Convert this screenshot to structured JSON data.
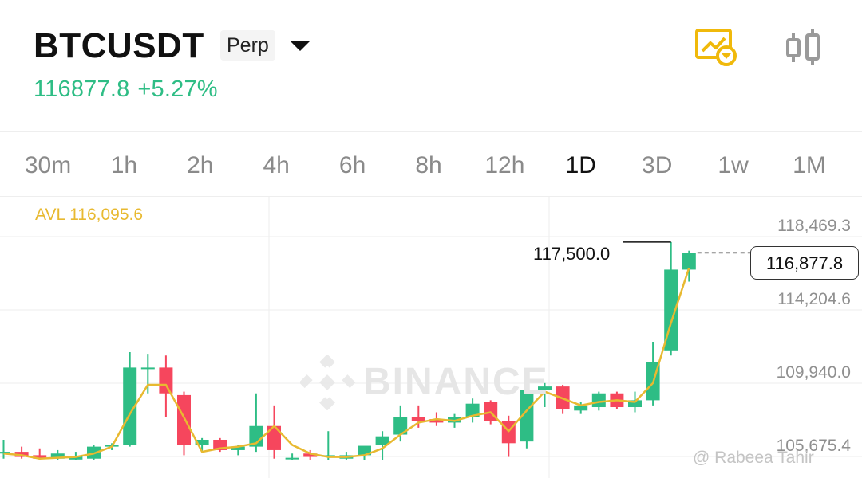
{
  "header": {
    "symbol": "BTCUSDT",
    "contract_type": "Perp",
    "last_price": "116877.8",
    "change_pct": "+5.27%",
    "icons": [
      "dropdown-icon",
      "price-alert-icon",
      "candlestick-toggle-icon"
    ]
  },
  "intervals": {
    "items": [
      "30m",
      "1h",
      "2h",
      "4h",
      "6h",
      "8h",
      "12h",
      "1D",
      "3D",
      "1w",
      "1M"
    ],
    "active": "1D"
  },
  "chart": {
    "avl_label": "AVL 116,095.6",
    "high_label": "117,500.0",
    "current_price_label": "116,877.8",
    "watermark": "BINANCE",
    "credit": "@ Rabeea Tahir"
  },
  "colors": {
    "up": "#2ebd85",
    "down": "#f6465d",
    "ma": "#e8b930",
    "accent": "#f0b90b"
  },
  "chart_data": {
    "type": "candlestick",
    "y_axis_labels": [
      "118,469.3",
      "114,204.6",
      "109,940.0",
      "105,675.4"
    ],
    "y_axis_values": [
      118469.3,
      114204.6,
      109940.0,
      105675.4
    ],
    "ylim": [
      104800,
      120100
    ],
    "grid": true,
    "candles": [
      {
        "o": 105200,
        "h": 106000,
        "l": 104900,
        "c": 105300
      },
      {
        "o": 105300,
        "h": 105600,
        "l": 104900,
        "c": 105000
      },
      {
        "o": 105100,
        "h": 105500,
        "l": 104800,
        "c": 104900
      },
      {
        "o": 104900,
        "h": 105400,
        "l": 104800,
        "c": 105200
      },
      {
        "o": 104850,
        "h": 105300,
        "l": 104800,
        "c": 105050
      },
      {
        "o": 104900,
        "h": 105700,
        "l": 104800,
        "c": 105600
      },
      {
        "o": 105600,
        "h": 105800,
        "l": 105400,
        "c": 105700
      },
      {
        "o": 105700,
        "h": 111100,
        "l": 105600,
        "c": 110200
      },
      {
        "o": 110200,
        "h": 111000,
        "l": 108700,
        "c": 110200
      },
      {
        "o": 110200,
        "h": 110900,
        "l": 107300,
        "c": 108700
      },
      {
        "o": 108600,
        "h": 108800,
        "l": 105100,
        "c": 105700
      },
      {
        "o": 105700,
        "h": 106100,
        "l": 105300,
        "c": 106000
      },
      {
        "o": 106000,
        "h": 106100,
        "l": 105300,
        "c": 105400
      },
      {
        "o": 105400,
        "h": 105700,
        "l": 105100,
        "c": 105600
      },
      {
        "o": 105600,
        "h": 108700,
        "l": 105300,
        "c": 106800
      },
      {
        "o": 106800,
        "h": 108000,
        "l": 104900,
        "c": 105400
      },
      {
        "o": 104900,
        "h": 105200,
        "l": 104800,
        "c": 104950
      },
      {
        "o": 105200,
        "h": 105400,
        "l": 104800,
        "c": 105000
      },
      {
        "o": 105000,
        "h": 106500,
        "l": 104800,
        "c": 105100
      },
      {
        "o": 104900,
        "h": 105300,
        "l": 104800,
        "c": 105100
      },
      {
        "o": 105100,
        "h": 105600,
        "l": 104800,
        "c": 105650
      },
      {
        "o": 105700,
        "h": 106500,
        "l": 104800,
        "c": 106200
      },
      {
        "o": 106300,
        "h": 108000,
        "l": 105900,
        "c": 107300
      },
      {
        "o": 107300,
        "h": 108000,
        "l": 106700,
        "c": 107100
      },
      {
        "o": 107200,
        "h": 107600,
        "l": 106800,
        "c": 107000
      },
      {
        "o": 107000,
        "h": 107500,
        "l": 106700,
        "c": 107300
      },
      {
        "o": 107300,
        "h": 108400,
        "l": 107000,
        "c": 108100
      },
      {
        "o": 108200,
        "h": 108300,
        "l": 106900,
        "c": 107100
      },
      {
        "o": 107100,
        "h": 107400,
        "l": 105000,
        "c": 105800
      },
      {
        "o": 105900,
        "h": 109100,
        "l": 105500,
        "c": 108900
      },
      {
        "o": 108900,
        "h": 109300,
        "l": 107900,
        "c": 109100
      },
      {
        "o": 109100,
        "h": 109200,
        "l": 107500,
        "c": 107800
      },
      {
        "o": 107700,
        "h": 108200,
        "l": 107500,
        "c": 108000
      },
      {
        "o": 107900,
        "h": 108800,
        "l": 107700,
        "c": 108700
      },
      {
        "o": 108700,
        "h": 108800,
        "l": 107800,
        "c": 107900
      },
      {
        "o": 107900,
        "h": 108800,
        "l": 107600,
        "c": 108300
      },
      {
        "o": 108300,
        "h": 111700,
        "l": 108000,
        "c": 110500
      },
      {
        "o": 111200,
        "h": 117500,
        "l": 110900,
        "c": 115900
      },
      {
        "o": 115900,
        "h": 117000,
        "l": 115200,
        "c": 116877.8
      }
    ],
    "ma_line": [
      105200,
      105100,
      104900,
      104950,
      105000,
      105200,
      105600,
      107500,
      109200,
      109200,
      107300,
      105300,
      105500,
      105600,
      105800,
      106800,
      105700,
      105200,
      105000,
      105000,
      105100,
      105500,
      106300,
      107000,
      107200,
      107100,
      107400,
      107600,
      106500,
      107700,
      108800,
      108400,
      108000,
      108200,
      108300,
      108200,
      109300,
      112800,
      116000
    ]
  }
}
